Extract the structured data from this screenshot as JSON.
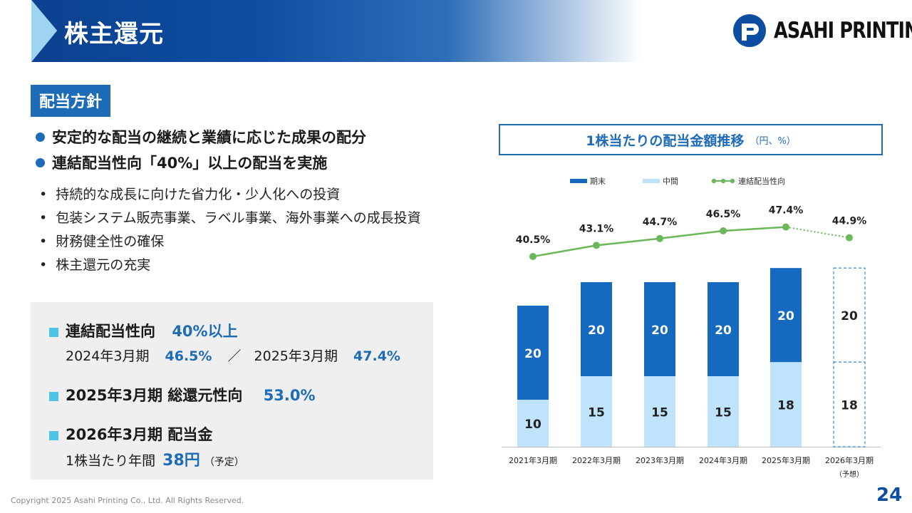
{
  "header": {
    "title": "株主還元",
    "logo_text": "ASAHI PRINTING"
  },
  "policy": {
    "tag": "配当方針",
    "headlines": [
      "安定的な配当の継続と業績に応じた成果の配分",
      "連結配当性向「40%」以上の配当を実施"
    ],
    "bullets": [
      "持続的な成長に向けた省力化・少人化への投資",
      "包装システム販売事業、ラベル事業、海外事業への成長投資",
      "財務健全性の確保",
      "株主還元の充実"
    ]
  },
  "summary": {
    "payout_label": "連結配当性向",
    "payout_value": "40%以上",
    "fy24_label": "2024年3月期",
    "fy24_value": "46.5%",
    "separator": "／",
    "fy25_label": "2025年3月期",
    "fy25_value": "47.4%",
    "total_label": "2025年3月期 総還元性向",
    "total_value": "53.0%",
    "div_label": "2026年3月期 配当金",
    "annual_label": "1株当たり年間",
    "annual_value": "38円",
    "annual_note": "（予定）"
  },
  "chart_data": {
    "type": "bar",
    "title": "1株当たりの配当金額推移",
    "unit": "（円、%）",
    "categories": [
      "2021年3月期",
      "2022年3月期",
      "2023年3月期",
      "2024年3月期",
      "2025年3月期",
      "2026年3月期"
    ],
    "category_notes": [
      "",
      "",
      "",
      "",
      "",
      "（予想）"
    ],
    "series": [
      {
        "name": "中間",
        "values": [
          10,
          15,
          15,
          15,
          18,
          18
        ],
        "color": "#bfe3fa"
      },
      {
        "name": "期末",
        "values": [
          20,
          20,
          20,
          20,
          20,
          20
        ],
        "color": "#1569bf"
      }
    ],
    "line": {
      "name": "連結配当性向",
      "values": [
        40.5,
        43.1,
        44.7,
        46.5,
        47.4,
        44.9
      ],
      "labels": [
        "40.5%",
        "43.1%",
        "44.7%",
        "46.5%",
        "47.4%",
        "44.9%"
      ],
      "color": "#6ab85a"
    },
    "forecast_index": 5,
    "stacked": true
  },
  "footer": {
    "copyright": "Copyright 2025 Asahi Printing Co., Ltd. All Rights Reserved.",
    "page": "24"
  }
}
